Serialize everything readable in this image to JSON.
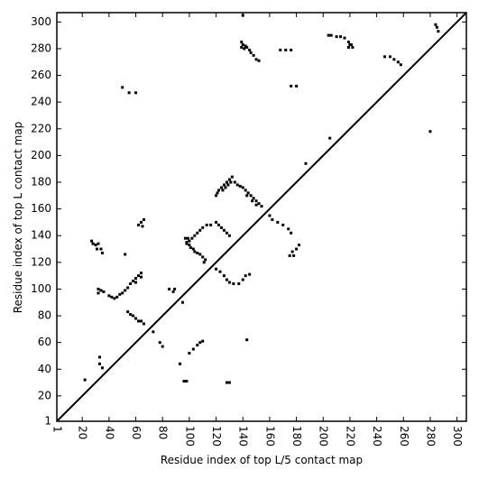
{
  "chart_data": {
    "type": "scatter",
    "xlabel": "Residue index of top L/5 contact map",
    "ylabel": "Residue index of top L contact map",
    "color": "#000000",
    "xlim": [
      1,
      307
    ],
    "ylim": [
      1,
      307
    ],
    "xticks": [
      1,
      20,
      40,
      60,
      80,
      100,
      120,
      140,
      160,
      180,
      200,
      220,
      240,
      260,
      280,
      300
    ],
    "yticks": [
      1,
      20,
      40,
      60,
      80,
      100,
      120,
      140,
      160,
      180,
      200,
      220,
      240,
      260,
      280,
      300
    ],
    "x": [
      140,
      139,
      140,
      142,
      143,
      145,
      146,
      148,
      150,
      152,
      139,
      141,
      168,
      172,
      176,
      176,
      180,
      204,
      206,
      210,
      213,
      216,
      219,
      221,
      222,
      219,
      220,
      246,
      250,
      253,
      256,
      258,
      284,
      285,
      286,
      50,
      55,
      60,
      187,
      280,
      205,
      120,
      121,
      122,
      124,
      126,
      128,
      130,
      132,
      134,
      136,
      138,
      140,
      142,
      144,
      146,
      148,
      150,
      152,
      154,
      125,
      127,
      129,
      131,
      143,
      147,
      150,
      160,
      162,
      166,
      170,
      174,
      176,
      175,
      177,
      180,
      182,
      178,
      97,
      98,
      100,
      101,
      103,
      104,
      106,
      108,
      110,
      112,
      111,
      98,
      99,
      102,
      104,
      106,
      108,
      110,
      113,
      116,
      100,
      120,
      122,
      124,
      126,
      128,
      130,
      120,
      123,
      126,
      128,
      130,
      133,
      137,
      140,
      142,
      145,
      27,
      28,
      30,
      32,
      31,
      34,
      35,
      32,
      32,
      34,
      36,
      40,
      42,
      44,
      46,
      48,
      50,
      52,
      54,
      56,
      58,
      60,
      62,
      64,
      64,
      60,
      52,
      62,
      64,
      66,
      65,
      54,
      56,
      58,
      60,
      62,
      64,
      66,
      85,
      88,
      89,
      73,
      78,
      80,
      93,
      96,
      98,
      100,
      103,
      106,
      108,
      110,
      128,
      130,
      33,
      35,
      33,
      22,
      95,
      143
    ],
    "y": [
      305,
      285,
      283,
      282,
      281,
      279,
      277,
      275,
      272,
      271,
      281,
      280,
      279,
      279,
      279,
      252,
      252,
      290,
      290,
      289,
      289,
      288,
      285,
      283,
      281,
      281,
      283,
      274,
      274,
      272,
      270,
      268,
      298,
      296,
      293,
      251,
      247,
      247,
      194,
      218,
      213,
      170,
      172,
      174,
      176,
      178,
      180,
      182,
      184,
      180,
      178,
      177,
      176,
      174,
      172,
      170,
      168,
      166,
      164,
      162,
      174,
      176,
      178,
      180,
      170,
      166,
      163,
      155,
      152,
      150,
      148,
      145,
      142,
      125,
      128,
      130,
      133,
      125,
      138,
      135,
      133,
      131,
      130,
      128,
      127,
      126,
      124,
      122,
      120,
      134,
      138,
      138,
      140,
      142,
      144,
      146,
      148,
      148,
      136,
      150,
      148,
      146,
      144,
      142,
      140,
      115,
      113,
      110,
      107,
      105,
      104,
      104,
      107,
      110,
      111,
      136,
      134,
      133,
      134,
      130,
      130,
      127,
      100,
      97,
      99,
      98,
      95,
      94,
      93,
      94,
      96,
      97,
      99,
      101,
      104,
      106,
      108,
      110,
      112,
      109,
      105,
      126,
      148,
      150,
      152,
      147,
      83,
      81,
      80,
      78,
      76,
      76,
      74,
      100,
      98,
      100,
      68,
      60,
      57,
      44,
      31,
      31,
      52,
      55,
      58,
      60,
      61,
      30,
      30,
      44,
      41,
      49,
      32,
      90,
      62
    ]
  }
}
